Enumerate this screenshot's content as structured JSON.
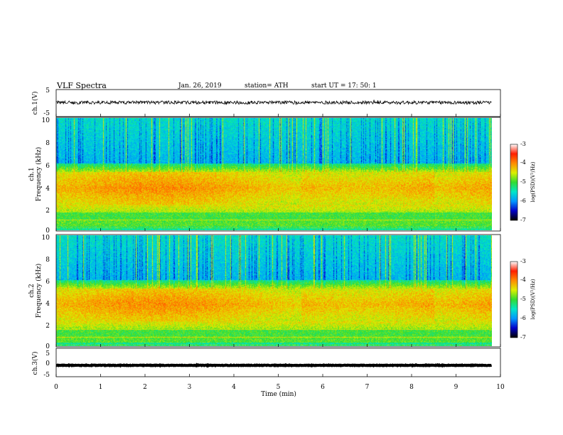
{
  "header": {
    "title": "VLF  Spectra",
    "date": "Jan. 26, 2019",
    "station": "station= ATH",
    "start": "start  UT  =    17: 50: 1"
  },
  "chart_data": [
    {
      "type": "line",
      "name": "waveform-ch1",
      "ylabel": "ch.1(V)",
      "ylim": [
        -5,
        5
      ],
      "yticks": [
        "5",
        "-5"
      ],
      "xlim": [
        0,
        10
      ],
      "baseline": 0.2,
      "amplitude": 0.6
    },
    {
      "type": "heatmap",
      "name": "spectrogram-ch1",
      "ylabel_top": "ch.1",
      "ylabel": "Frequency  (kHz)",
      "ylim": [
        0,
        10
      ],
      "yticks": [
        "0",
        "2",
        "4",
        "6",
        "8",
        "10"
      ],
      "xlim": [
        0,
        10
      ],
      "data_end_min": 9.8,
      "colorbar": {
        "label": "log(PSD)(V²/Hz)",
        "range": [
          -7,
          -3
        ],
        "ticks": [
          "-3",
          "-4",
          "-5",
          "-6",
          "-7"
        ]
      }
    },
    {
      "type": "heatmap",
      "name": "spectrogram-ch2",
      "ylabel_top": "ch.2",
      "ylabel": "Frequency  (kHz)",
      "ylim": [
        0,
        10
      ],
      "yticks": [
        "0",
        "2",
        "4",
        "6",
        "8",
        "10"
      ],
      "xlim": [
        0,
        10
      ],
      "data_end_min": 9.8,
      "colorbar": {
        "label": "log(PSD)(V²/Hz)",
        "range": [
          -7,
          -3
        ],
        "ticks": [
          "-3",
          "-4",
          "-5",
          "-6",
          "-7"
        ]
      }
    },
    {
      "type": "line",
      "name": "waveform-ch3",
      "ylabel": "ch.3(V)",
      "ylim": [
        -5,
        5
      ],
      "yticks": [
        "5",
        "0",
        "-5"
      ],
      "xlim": [
        0,
        10
      ],
      "baseline": -1.0,
      "amplitude": 0.1
    }
  ],
  "xaxis": {
    "label": "Time  (min)",
    "ticks": [
      "0",
      "1",
      "2",
      "3",
      "4",
      "5",
      "6",
      "7",
      "8",
      "9",
      "10"
    ]
  },
  "colors": {
    "spectrogram_scale": [
      "#000000",
      "#0000c8",
      "#0096ff",
      "#00e6c8",
      "#32dc32",
      "#dcf000",
      "#ff8c00",
      "#ff1e00",
      "#ffffff"
    ]
  }
}
